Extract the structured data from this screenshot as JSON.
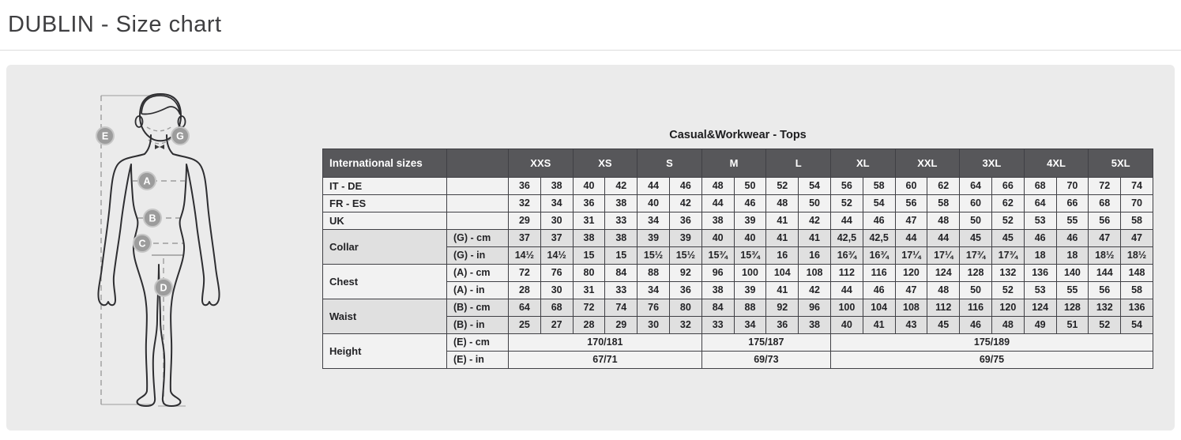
{
  "page": {
    "title": "DUBLIN - Size chart"
  },
  "figure": {
    "labels": {
      "height": "E",
      "collar": "G",
      "chest": "A",
      "waist": "B",
      "hip": "C",
      "inseam": "D"
    }
  },
  "chart_data": {
    "type": "table",
    "title": "Casual&Workwear - Tops",
    "header": {
      "col1": "International sizes",
      "col2": "",
      "sizes": [
        "XXS",
        "XS",
        "S",
        "M",
        "L",
        "XL",
        "XXL",
        "3XL",
        "4XL",
        "5XL"
      ]
    },
    "groups": [
      {
        "label": "IT - DE",
        "shade": "light",
        "rows": [
          {
            "sublabel": "",
            "values": [
              "36",
              "38",
              "40",
              "42",
              "44",
              "46",
              "48",
              "50",
              "52",
              "54",
              "56",
              "58",
              "60",
              "62",
              "64",
              "66",
              "68",
              "70",
              "72",
              "74"
            ]
          }
        ]
      },
      {
        "label": "FR - ES",
        "shade": "light",
        "rows": [
          {
            "sublabel": "",
            "values": [
              "32",
              "34",
              "36",
              "38",
              "40",
              "42",
              "44",
              "46",
              "48",
              "50",
              "52",
              "54",
              "56",
              "58",
              "60",
              "62",
              "64",
              "66",
              "68",
              "70"
            ]
          }
        ]
      },
      {
        "label": "UK",
        "shade": "light",
        "rows": [
          {
            "sublabel": "",
            "values": [
              "29",
              "30",
              "31",
              "33",
              "34",
              "36",
              "38",
              "39",
              "41",
              "42",
              "44",
              "46",
              "47",
              "48",
              "50",
              "52",
              "53",
              "55",
              "56",
              "58"
            ]
          }
        ]
      },
      {
        "label": "Collar",
        "shade": "dark",
        "rows": [
          {
            "sublabel": "(G) - cm",
            "values": [
              "37",
              "37",
              "38",
              "38",
              "39",
              "39",
              "40",
              "40",
              "41",
              "41",
              "42,5",
              "42,5",
              "44",
              "44",
              "45",
              "45",
              "46",
              "46",
              "47",
              "47"
            ]
          },
          {
            "sublabel": "(G) - in",
            "values": [
              "14½",
              "14½",
              "15",
              "15",
              "15½",
              "15½",
              "15¾",
              "15¾",
              "16",
              "16",
              "16¾",
              "16¾",
              "17¼",
              "17¼",
              "17¾",
              "17¾",
              "18",
              "18",
              "18½",
              "18½"
            ]
          }
        ]
      },
      {
        "label": "Chest",
        "shade": "light",
        "rows": [
          {
            "sublabel": "(A) - cm",
            "values": [
              "72",
              "76",
              "80",
              "84",
              "88",
              "92",
              "96",
              "100",
              "104",
              "108",
              "112",
              "116",
              "120",
              "124",
              "128",
              "132",
              "136",
              "140",
              "144",
              "148"
            ]
          },
          {
            "sublabel": "(A) - in",
            "values": [
              "28",
              "30",
              "31",
              "33",
              "34",
              "36",
              "38",
              "39",
              "41",
              "42",
              "44",
              "46",
              "47",
              "48",
              "50",
              "52",
              "53",
              "55",
              "56",
              "58"
            ]
          }
        ]
      },
      {
        "label": "Waist",
        "shade": "dark",
        "rows": [
          {
            "sublabel": "(B) - cm",
            "values": [
              "64",
              "68",
              "72",
              "74",
              "76",
              "80",
              "84",
              "88",
              "92",
              "96",
              "100",
              "104",
              "108",
              "112",
              "116",
              "120",
              "124",
              "128",
              "132",
              "136"
            ]
          },
          {
            "sublabel": "(B) - in",
            "values": [
              "25",
              "27",
              "28",
              "29",
              "30",
              "32",
              "33",
              "34",
              "36",
              "38",
              "40",
              "41",
              "43",
              "45",
              "46",
              "48",
              "49",
              "51",
              "52",
              "54"
            ]
          }
        ]
      },
      {
        "label": "Height",
        "shade": "light",
        "rows": [
          {
            "sublabel": "(E) - cm",
            "values": [
              {
                "text": "170/181",
                "span": 6
              },
              {
                "text": "175/187",
                "span": 4
              },
              {
                "text": "175/189",
                "span": 10
              }
            ]
          },
          {
            "sublabel": "(E) - in",
            "values": [
              {
                "text": "67/71",
                "span": 6
              },
              {
                "text": "69/73",
                "span": 4
              },
              {
                "text": "69/75",
                "span": 10
              }
            ]
          }
        ]
      }
    ]
  }
}
